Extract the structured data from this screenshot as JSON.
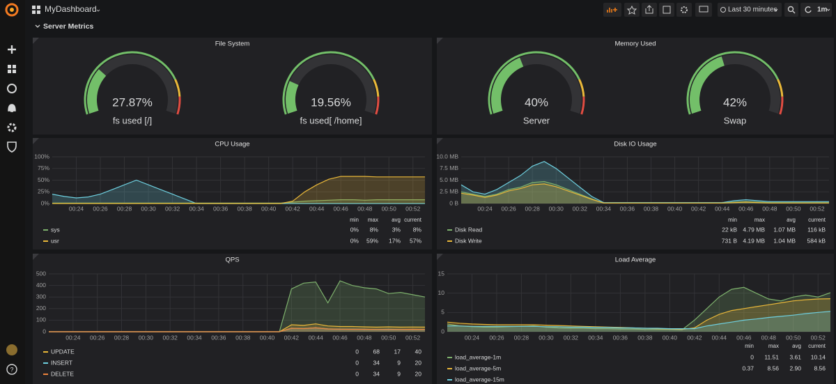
{
  "topbar": {
    "title": "MyDashboard",
    "time_range": "Last 30 minutes",
    "refresh": "1m"
  },
  "row": {
    "title": "Server Metrics"
  },
  "gauge_panels": [
    {
      "title": "File System",
      "range": [
        0,
        100
      ],
      "color": "#73bf69",
      "thresholds": [
        {
          "value": 80,
          "color": "#eab839"
        },
        {
          "value": 90,
          "color": "#e24d42"
        }
      ],
      "gauges": [
        {
          "name": "fs used [/]",
          "value": 27.87,
          "value_label": "27.87%"
        },
        {
          "name": "fs used[ /home]",
          "value": 19.56,
          "value_label": "19.56%"
        }
      ]
    },
    {
      "title": "Memory Used",
      "range": [
        0,
        100
      ],
      "color": "#73bf69",
      "thresholds": [
        {
          "value": 80,
          "color": "#eab839"
        },
        {
          "value": 90,
          "color": "#e24d42"
        }
      ],
      "gauges": [
        {
          "name": "Server",
          "value": 40,
          "value_label": "40%"
        },
        {
          "name": "Swap",
          "value": 42,
          "value_label": "42%"
        }
      ]
    }
  ],
  "chart_panels": [
    {
      "type": "line",
      "title": "CPU Usage",
      "x": [
        "00:22",
        "00:23",
        "00:24",
        "00:25",
        "00:26",
        "00:27",
        "00:28",
        "00:29",
        "00:30",
        "00:31",
        "00:32",
        "00:33",
        "00:34",
        "00:35",
        "00:36",
        "00:37",
        "00:38",
        "00:39",
        "00:40",
        "00:41",
        "00:42",
        "00:43",
        "00:44",
        "00:45",
        "00:46",
        "00:47",
        "00:48",
        "00:49",
        "00:50",
        "00:51",
        "00:52",
        "00:53"
      ],
      "xlim": [
        "00:22",
        "00:53"
      ],
      "xticks": [
        "00:24",
        "00:26",
        "00:28",
        "00:30",
        "00:32",
        "00:34",
        "00:36",
        "00:38",
        "00:40",
        "00:42",
        "00:44",
        "00:46",
        "00:48",
        "00:50",
        "00:52"
      ],
      "ylim": [
        0,
        100
      ],
      "yticks": [
        {
          "value": 0,
          "label": "0%"
        },
        {
          "value": 25,
          "label": "25%"
        },
        {
          "value": 50,
          "label": "50%"
        },
        {
          "value": 75,
          "label": "75%"
        },
        {
          "value": 100,
          "label": "100%"
        }
      ],
      "legend_columns": [
        "min",
        "max",
        "avg",
        "current"
      ],
      "series": [
        {
          "name": "sys",
          "color": "#7eb26d",
          "values": [
            1,
            1,
            1,
            1,
            1,
            1,
            1,
            1,
            1,
            1,
            1,
            1,
            1,
            1,
            1,
            1,
            1,
            1,
            1,
            1,
            3,
            5,
            6,
            7,
            8,
            8,
            7,
            8,
            8,
            8,
            8,
            8
          ],
          "stats": [
            "0%",
            "8%",
            "3%",
            "8%"
          ]
        },
        {
          "name": "usr",
          "color": "#eab839",
          "values": [
            0,
            0,
            0,
            0,
            0,
            0,
            0,
            0,
            0,
            0,
            0,
            0,
            0,
            0,
            0,
            0,
            0,
            0,
            0,
            0,
            5,
            25,
            40,
            52,
            58,
            58,
            58,
            57,
            57,
            57,
            57,
            57
          ],
          "stats": [
            "0%",
            "59%",
            "17%",
            "57%"
          ]
        },
        {
          "color": "#6ed0e0",
          "values": [
            20,
            15,
            12,
            14,
            20,
            30,
            40,
            50,
            40,
            30,
            20,
            10,
            0,
            0,
            0,
            0,
            0,
            0,
            0,
            0,
            0,
            0,
            0,
            0,
            0,
            0,
            0,
            0,
            0,
            0,
            0,
            0
          ]
        }
      ]
    },
    {
      "type": "line",
      "title": "Disk IO Usage",
      "x": [
        "00:22",
        "00:23",
        "00:24",
        "00:25",
        "00:26",
        "00:27",
        "00:28",
        "00:29",
        "00:30",
        "00:31",
        "00:32",
        "00:33",
        "00:34",
        "00:35",
        "00:36",
        "00:37",
        "00:38",
        "00:39",
        "00:40",
        "00:41",
        "00:42",
        "00:43",
        "00:44",
        "00:45",
        "00:46",
        "00:47",
        "00:48",
        "00:49",
        "00:50",
        "00:51",
        "00:52",
        "00:53"
      ],
      "xlim": [
        "00:22",
        "00:53"
      ],
      "xticks": [
        "00:24",
        "00:26",
        "00:28",
        "00:30",
        "00:32",
        "00:34",
        "00:36",
        "00:38",
        "00:40",
        "00:42",
        "00:44",
        "00:46",
        "00:48",
        "00:50",
        "00:52"
      ],
      "ylim": [
        0,
        10
      ],
      "yticks": [
        {
          "value": 0,
          "label": "0 B"
        },
        {
          "value": 2.5,
          "label": "2.5 MB"
        },
        {
          "value": 5,
          "label": "5.0 MB"
        },
        {
          "value": 7.5,
          "label": "7.5 MB"
        },
        {
          "value": 10,
          "label": "10.0 MB"
        }
      ],
      "legend_columns": [
        "min",
        "max",
        "avg",
        "current"
      ],
      "series": [
        {
          "name": "Disk Read",
          "color": "#7eb26d",
          "values": [
            2.5,
            2,
            1.5,
            2,
            3,
            3.5,
            4.5,
            4.7,
            4,
            3,
            2,
            1,
            0.1,
            0.1,
            0.1,
            0.1,
            0.1,
            0.1,
            0.1,
            0.1,
            0.1,
            0.1,
            0.1,
            0.3,
            0.4,
            0.3,
            0.2,
            0.2,
            0.2,
            0.2,
            0.2,
            0.2
          ],
          "stats": [
            "22 kB",
            "4.79 MB",
            "1.07 MB",
            "116 kB"
          ]
        },
        {
          "name": "Disk Write",
          "color": "#eab839",
          "values": [
            2.2,
            1.8,
            1.3,
            1.8,
            2.7,
            3.2,
            4,
            4.19,
            3.6,
            2.7,
            1.8,
            0.9,
            0.1,
            0.1,
            0.1,
            0.1,
            0.1,
            0.1,
            0.1,
            0.1,
            0.1,
            0.1,
            0.1,
            0.2,
            0.3,
            0.2,
            0.1,
            0.1,
            0.1,
            0.1,
            0.1,
            0.1
          ],
          "stats": [
            "731 B",
            "4.19 MB",
            "1.04 MB",
            "584 kB"
          ]
        },
        {
          "color": "#6ed0e0",
          "values": [
            4,
            2.5,
            2,
            3,
            4.5,
            6,
            8,
            9,
            7.5,
            5.5,
            3.5,
            1.5,
            0.2,
            0.2,
            0.2,
            0.2,
            0.2,
            0.2,
            0.2,
            0.2,
            0.2,
            0.2,
            0.2,
            0.6,
            0.8,
            0.6,
            0.4,
            0.4,
            0.4,
            0.4,
            0.4,
            0.4
          ]
        }
      ]
    },
    {
      "type": "line",
      "title": "QPS",
      "x": [
        "00:22",
        "00:23",
        "00:24",
        "00:25",
        "00:26",
        "00:27",
        "00:28",
        "00:29",
        "00:30",
        "00:31",
        "00:32",
        "00:33",
        "00:34",
        "00:35",
        "00:36",
        "00:37",
        "00:38",
        "00:39",
        "00:40",
        "00:41",
        "00:42",
        "00:43",
        "00:44",
        "00:45",
        "00:46",
        "00:47",
        "00:48",
        "00:49",
        "00:50",
        "00:51",
        "00:52",
        "00:53"
      ],
      "xlim": [
        "00:22",
        "00:53"
      ],
      "xticks": [
        "00:24",
        "00:26",
        "00:28",
        "00:30",
        "00:32",
        "00:34",
        "00:36",
        "00:38",
        "00:40",
        "00:42",
        "00:44",
        "00:46",
        "00:48",
        "00:50",
        "00:52"
      ],
      "ylim": [
        0,
        500
      ],
      "yticks": [
        0,
        100,
        200,
        300,
        400,
        500
      ],
      "series": [
        {
          "color": "#7eb26d",
          "values": [
            0,
            0,
            0,
            0,
            0,
            0,
            0,
            0,
            0,
            0,
            0,
            0,
            0,
            0,
            0,
            0,
            0,
            0,
            0,
            0,
            370,
            420,
            430,
            250,
            440,
            400,
            380,
            370,
            330,
            340,
            320,
            300
          ]
        },
        {
          "name": "UPDATE",
          "color": "#eab839",
          "values": [
            0,
            0,
            0,
            0,
            0,
            0,
            0,
            0,
            0,
            0,
            0,
            0,
            0,
            0,
            0,
            0,
            0,
            0,
            0,
            0,
            60,
            55,
            68,
            50,
            45,
            45,
            42,
            40,
            42,
            40,
            41,
            40
          ],
          "stats": [
            "0",
            "68",
            "17",
            "40"
          ]
        },
        {
          "name": "INSERT",
          "color": "#6ed0e0",
          "values": [
            0,
            0,
            0,
            0,
            0,
            0,
            0,
            0,
            0,
            0,
            0,
            0,
            0,
            0,
            0,
            0,
            0,
            0,
            0,
            0,
            30,
            28,
            34,
            25,
            22,
            22,
            21,
            20,
            21,
            20,
            20,
            20
          ],
          "stats": [
            "0",
            "34",
            "9",
            "20"
          ]
        },
        {
          "name": "DELETE",
          "color": "#ef843c",
          "values": [
            0,
            0,
            0,
            0,
            0,
            0,
            0,
            0,
            0,
            0,
            0,
            0,
            0,
            0,
            0,
            0,
            0,
            0,
            0,
            0,
            30,
            27,
            34,
            24,
            22,
            21,
            21,
            20,
            20,
            20,
            21,
            20
          ],
          "stats": [
            "0",
            "34",
            "9",
            "20"
          ]
        }
      ]
    },
    {
      "type": "line",
      "title": "Load Average",
      "x": [
        "00:22",
        "00:23",
        "00:24",
        "00:25",
        "00:26",
        "00:27",
        "00:28",
        "00:29",
        "00:30",
        "00:31",
        "00:32",
        "00:33",
        "00:34",
        "00:35",
        "00:36",
        "00:37",
        "00:38",
        "00:39",
        "00:40",
        "00:41",
        "00:42",
        "00:43",
        "00:44",
        "00:45",
        "00:46",
        "00:47",
        "00:48",
        "00:49",
        "00:50",
        "00:51",
        "00:52",
        "00:53"
      ],
      "xlim": [
        "00:22",
        "00:53"
      ],
      "xticks": [
        "00:24",
        "00:26",
        "00:28",
        "00:30",
        "00:32",
        "00:34",
        "00:36",
        "00:38",
        "00:40",
        "00:42",
        "00:44",
        "00:46",
        "00:48",
        "00:50",
        "00:52"
      ],
      "ylim": [
        0,
        15
      ],
      "yticks": [
        0,
        5,
        10,
        15
      ],
      "legend_columns": [
        "min",
        "max",
        "avg",
        "current"
      ],
      "series": [
        {
          "name": "load_average-1m",
          "color": "#7eb26d",
          "values": [
            2,
            1.5,
            1.3,
            1.2,
            1.2,
            1.3,
            1.4,
            1.5,
            1.2,
            1,
            0.9,
            0.9,
            0.8,
            0.8,
            0.7,
            0.7,
            0.6,
            0.6,
            0.6,
            0.5,
            3,
            6,
            9,
            11,
            11.51,
            10,
            8.5,
            8,
            9,
            9.5,
            9,
            10.14
          ],
          "stats": [
            "0",
            "11.51",
            "3.61",
            "10.14"
          ]
        },
        {
          "name": "load_average-5m",
          "color": "#eab839",
          "values": [
            2.5,
            2.2,
            2,
            1.9,
            1.8,
            1.8,
            1.8,
            1.8,
            1.7,
            1.6,
            1.5,
            1.4,
            1.3,
            1.2,
            1.1,
            1,
            0.9,
            0.8,
            0.7,
            0.6,
            1,
            3,
            4.5,
            5.5,
            6,
            6.5,
            7,
            7.5,
            8,
            8.3,
            8.5,
            8.56
          ],
          "stats": [
            "0.37",
            "8.56",
            "2.90",
            "8.56"
          ]
        },
        {
          "name": "load_average-15m",
          "color": "#6ed0e0",
          "values": [
            1.5,
            1.5,
            1.4,
            1.4,
            1.4,
            1.4,
            1.4,
            1.4,
            1.3,
            1.3,
            1.2,
            1.2,
            1.1,
            1.1,
            1,
            1,
            0.9,
            0.9,
            0.8,
            0.8,
            0.8,
            1.5,
            2,
            2.5,
            3,
            3.3,
            3.7,
            4,
            4.3,
            4.7,
            5,
            5.3
          ]
        }
      ]
    }
  ]
}
